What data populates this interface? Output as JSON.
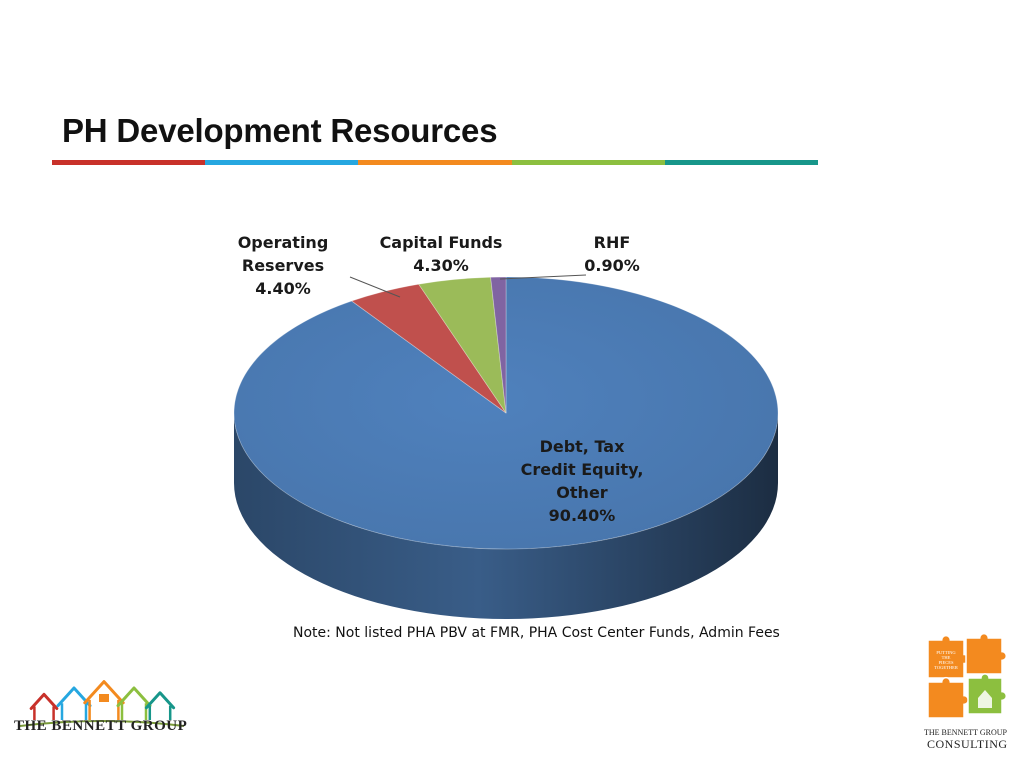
{
  "slide": {
    "title": "PH Development Resources",
    "rule_colors": [
      "#c8312a",
      "#26a7e0",
      "#f38a1f",
      "#8cbf3f",
      "#17968a"
    ],
    "note": "Note: Not listed PHA PBV at FMR, PHA Cost Center Funds, Admin Fees"
  },
  "chart_data": {
    "type": "pie",
    "style": "3d",
    "title": "",
    "slices": [
      {
        "label_lines": [
          "Debt, Tax",
          "Credit Equity,",
          "Other"
        ],
        "value_text": "90.40%",
        "value": 90.4,
        "color": "#4f81bd"
      },
      {
        "label_lines": [
          "Operating",
          "Reserves"
        ],
        "value_text": "4.40%",
        "value": 4.4,
        "color": "#c0504d"
      },
      {
        "label_lines": [
          "Capital Funds"
        ],
        "value_text": "4.30%",
        "value": 4.3,
        "color": "#9bbb59"
      },
      {
        "label_lines": [
          "RHF"
        ],
        "value_text": "0.90%",
        "value": 0.9,
        "color": "#8064a2"
      }
    ]
  },
  "logos": {
    "left": {
      "text": "THE BENNETT GROUP",
      "house_colors": [
        "#c8312a",
        "#26a7e0",
        "#f38a1f",
        "#8cbf3f",
        "#17968a"
      ]
    },
    "right": {
      "puzzle_text": [
        "PUTTING",
        "THE",
        "PIECES",
        "TOGETHER"
      ],
      "line1": "THE BENNETT GROUP",
      "line2": "CONSULTING",
      "colors": [
        "#f38a1f",
        "#8cbf3f"
      ]
    }
  }
}
